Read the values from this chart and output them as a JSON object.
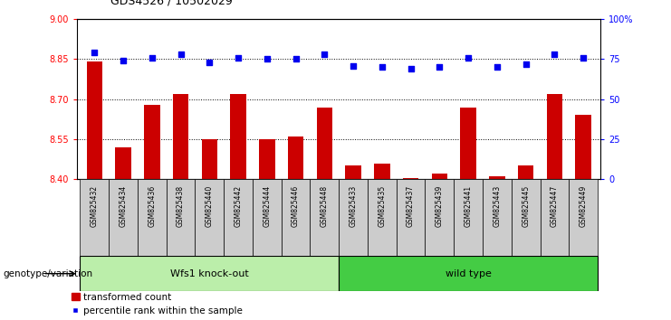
{
  "title": "GDS4526 / 10502029",
  "samples": [
    "GSM825432",
    "GSM825434",
    "GSM825436",
    "GSM825438",
    "GSM825440",
    "GSM825442",
    "GSM825444",
    "GSM825446",
    "GSM825448",
    "GSM825433",
    "GSM825435",
    "GSM825437",
    "GSM825439",
    "GSM825441",
    "GSM825443",
    "GSM825445",
    "GSM825447",
    "GSM825449"
  ],
  "red_values": [
    8.84,
    8.52,
    8.68,
    8.72,
    8.55,
    8.72,
    8.55,
    8.56,
    8.67,
    8.45,
    8.46,
    8.405,
    8.42,
    8.67,
    8.41,
    8.45,
    8.72,
    8.64
  ],
  "blue_values": [
    79,
    74,
    76,
    78,
    73,
    76,
    75,
    75,
    78,
    71,
    70,
    69,
    70,
    76,
    70,
    72,
    78,
    76
  ],
  "ylim_left": [
    8.4,
    9.0
  ],
  "ylim_right": [
    0,
    100
  ],
  "yticks_left": [
    8.4,
    8.55,
    8.7,
    8.85,
    9.0
  ],
  "yticks_right": [
    0,
    25,
    50,
    75,
    100
  ],
  "ytick_labels_right": [
    "0",
    "25",
    "50",
    "75",
    "100%"
  ],
  "group1_label": "Wfs1 knock-out",
  "group2_label": "wild type",
  "group1_count": 9,
  "group2_count": 9,
  "genotype_label": "genotype/variation",
  "legend_red": "transformed count",
  "legend_blue": "percentile rank within the sample",
  "bar_color": "#cc0000",
  "dot_color": "#0000ee",
  "group1_bg": "#bbeeaa",
  "group2_bg": "#44cc44",
  "xticklabel_bg": "#cccccc",
  "baseline": 8.4
}
